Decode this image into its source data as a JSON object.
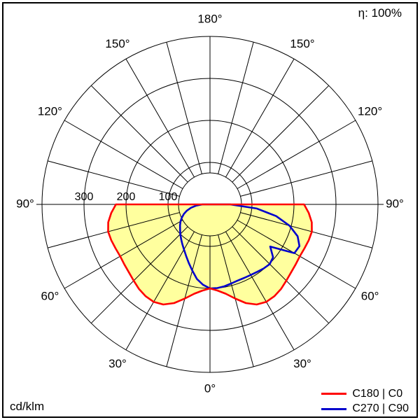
{
  "header": {
    "efficiency_label": "η: 100%"
  },
  "footer": {
    "unit_label": "cd/klm"
  },
  "legend": {
    "items": [
      {
        "label": "C180 | C0",
        "color": "#ff0000"
      },
      {
        "label": "C270 | C90",
        "color": "#0000cc"
      }
    ]
  },
  "chart_data": {
    "type": "line",
    "subtype": "polar-luminous-intensity-distribution",
    "title": "",
    "unit": "cd/klm",
    "efficiency": "η: 100%",
    "angle_step_deg": 15,
    "angle_labels": [
      {
        "gamma": 0,
        "text": "0°"
      },
      {
        "gamma": 30,
        "text": "30°"
      },
      {
        "gamma": 60,
        "text": "60°"
      },
      {
        "gamma": 90,
        "text": "90°"
      },
      {
        "gamma": 120,
        "text": "120°"
      },
      {
        "gamma": 150,
        "text": "150°"
      },
      {
        "gamma": 180,
        "text": "180°"
      }
    ],
    "radial_axis": {
      "circle_values": [
        100,
        200,
        300,
        400
      ],
      "labeled_values": [
        100,
        200,
        300
      ],
      "max": 400,
      "unit": "cd/klm"
    },
    "series": [
      {
        "name": "C180 | C0",
        "color": "#ff0000",
        "fill": "#ffff9e",
        "gamma_deg": [
          0,
          5,
          10,
          15,
          20,
          25,
          30,
          35,
          40,
          45,
          50,
          55,
          60,
          65,
          70,
          75,
          80,
          85,
          90,
          95
        ],
        "values_right": [
          200,
          206,
          216,
          232,
          250,
          263,
          268,
          267,
          263,
          257,
          252,
          249,
          247,
          248,
          250,
          251,
          246,
          236,
          224,
          0
        ],
        "values_left": [
          200,
          206,
          216,
          232,
          250,
          263,
          268,
          267,
          263,
          257,
          252,
          249,
          247,
          248,
          250,
          251,
          246,
          236,
          224,
          0
        ]
      },
      {
        "name": "C270 | C90",
        "color": "#0000cc",
        "fill": null,
        "gamma_deg": [
          0,
          5,
          10,
          15,
          20,
          25,
          30,
          35,
          40,
          45,
          50,
          55,
          60,
          65,
          70,
          75,
          80,
          85,
          90,
          95
        ],
        "values_right": [
          200,
          200,
          198,
          195,
          193,
          193,
          194,
          196,
          199,
          201,
          196,
          175,
          232,
          235,
          222,
          196,
          160,
          112,
          48,
          0
        ],
        "values_left": [
          200,
          192,
          180,
          163,
          148,
          135,
          124,
          115,
          107,
          100,
          93,
          87,
          81,
          74,
          66,
          57,
          46,
          33,
          18,
          0
        ]
      }
    ]
  }
}
